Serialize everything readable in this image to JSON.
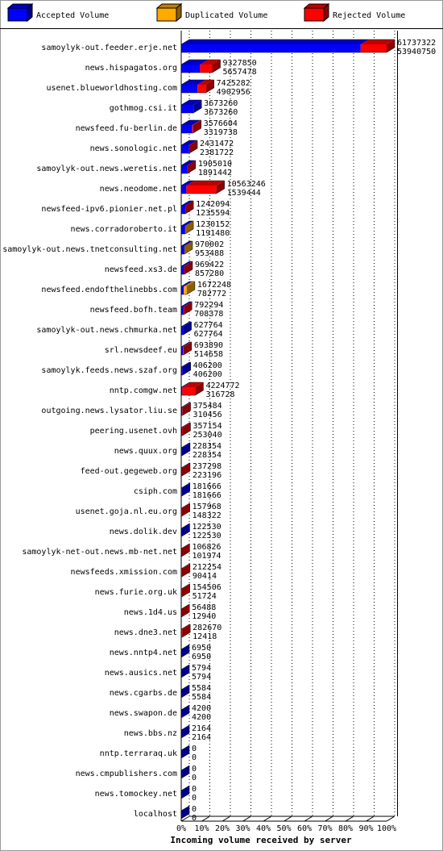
{
  "chart_data": {
    "type": "bar3d-stacked-horizontal",
    "xlabel": "Incoming volume received by server",
    "categories": [
      "samoylyk-out.feeder.erje.net",
      "news.hispagatos.org",
      "usenet.blueworldhosting.com",
      "gothmog.csi.it",
      "newsfeed.fu-berlin.de",
      "news.sonologic.net",
      "samoylyk-out.news.weretis.net",
      "news.neodome.net",
      "newsfeed-ipv6.pionier.net.pl",
      "news.corradoroberto.it",
      "samoylyk-out.news.tnetconsulting.net",
      "newsfeed.xs3.de",
      "newsfeed.endofthelinebbs.com",
      "newsfeed.bofh.team",
      "samoylyk-out.news.chmurka.net",
      "srl.newsdeef.eu",
      "samoylyk.feeds.news.szaf.org",
      "nntp.comgw.net",
      "outgoing.news.lysator.liu.se",
      "peering.usenet.ovh",
      "news.quux.org",
      "feed-out.gegeweb.org",
      "csiph.com",
      "usenet.goja.nl.eu.org",
      "news.dolik.dev",
      "samoylyk-net-out.news.mb-net.net",
      "newsfeeds.xmission.com",
      "news.furie.org.uk",
      "news.1d4.us",
      "news.dne3.net",
      "news.nntp4.net",
      "news.ausics.net",
      "news.cgarbs.de",
      "news.swapon.de",
      "news.bbs.nz",
      "nntp.terraraq.uk",
      "news.cmpublishers.com",
      "news.tomockey.net",
      "localhost"
    ],
    "totals": [
      61737322,
      9327850,
      7425282,
      3673260,
      3576604,
      2431472,
      1905010,
      10563246,
      1242094,
      1230152,
      970002,
      969422,
      1672248,
      792294,
      627764,
      693890,
      406200,
      4224772,
      375484,
      357154,
      228354,
      237298,
      181666,
      157968,
      122530,
      106826,
      212254,
      154506,
      56488,
      282670,
      6950,
      5794,
      5584,
      4200,
      2164,
      0,
      0,
      0,
      0
    ],
    "series": [
      {
        "name": "Accepted Volume",
        "color": "#0000ff",
        "values": [
          53940750,
          5657478,
          4902956,
          3673260,
          3319738,
          2381722,
          1891442,
          1539444,
          1235594,
          1191480,
          953488,
          857280,
          782772,
          708378,
          627764,
          514658,
          406200,
          316728,
          310456,
          253040,
          228354,
          223196,
          181666,
          148322,
          122530,
          101974,
          90414,
          51724,
          12940,
          12418,
          6950,
          5794,
          5584,
          4200,
          2164,
          0,
          0,
          0,
          0
        ]
      },
      {
        "name": "Duplicated Volume",
        "color": "#ffaa00",
        "values": [
          0,
          0,
          0,
          0,
          0,
          0,
          0,
          0,
          0,
          38672,
          16514,
          0,
          889476,
          0,
          0,
          0,
          0,
          0,
          0,
          0,
          0,
          0,
          0,
          0,
          0,
          0,
          0,
          0,
          0,
          0,
          0,
          0,
          0,
          0,
          0,
          0,
          0,
          0,
          0
        ]
      },
      {
        "name": "Rejected Volume",
        "color": "#ff0000",
        "values": [
          7796572,
          3670372,
          2522326,
          0,
          256866,
          49750,
          13568,
          9023802,
          6500,
          0,
          0,
          112142,
          0,
          83916,
          0,
          179232,
          0,
          3908044,
          65028,
          104114,
          0,
          14102,
          0,
          9646,
          0,
          4852,
          121840,
          102782,
          43548,
          270252,
          0,
          0,
          0,
          0,
          0,
          0,
          0,
          0,
          0
        ]
      }
    ],
    "xlim": [
      0,
      61737322
    ],
    "xticks": [
      {
        "value": 0,
        "label": "0%"
      },
      {
        "value": 6173732.2,
        "label": "10%"
      },
      {
        "value": 12347464.4,
        "label": "20%"
      },
      {
        "value": 18521196.6,
        "label": "30%"
      },
      {
        "value": 24694928.8,
        "label": "40%"
      },
      {
        "value": 30868661,
        "label": "50%"
      },
      {
        "value": 37042393.2,
        "label": "60%"
      },
      {
        "value": 43216125.4,
        "label": "70%"
      },
      {
        "value": 49389857.6,
        "label": "80%"
      },
      {
        "value": 55563589.8,
        "label": "90%"
      },
      {
        "value": 61737322,
        "label": "100%"
      }
    ],
    "grid": true
  }
}
